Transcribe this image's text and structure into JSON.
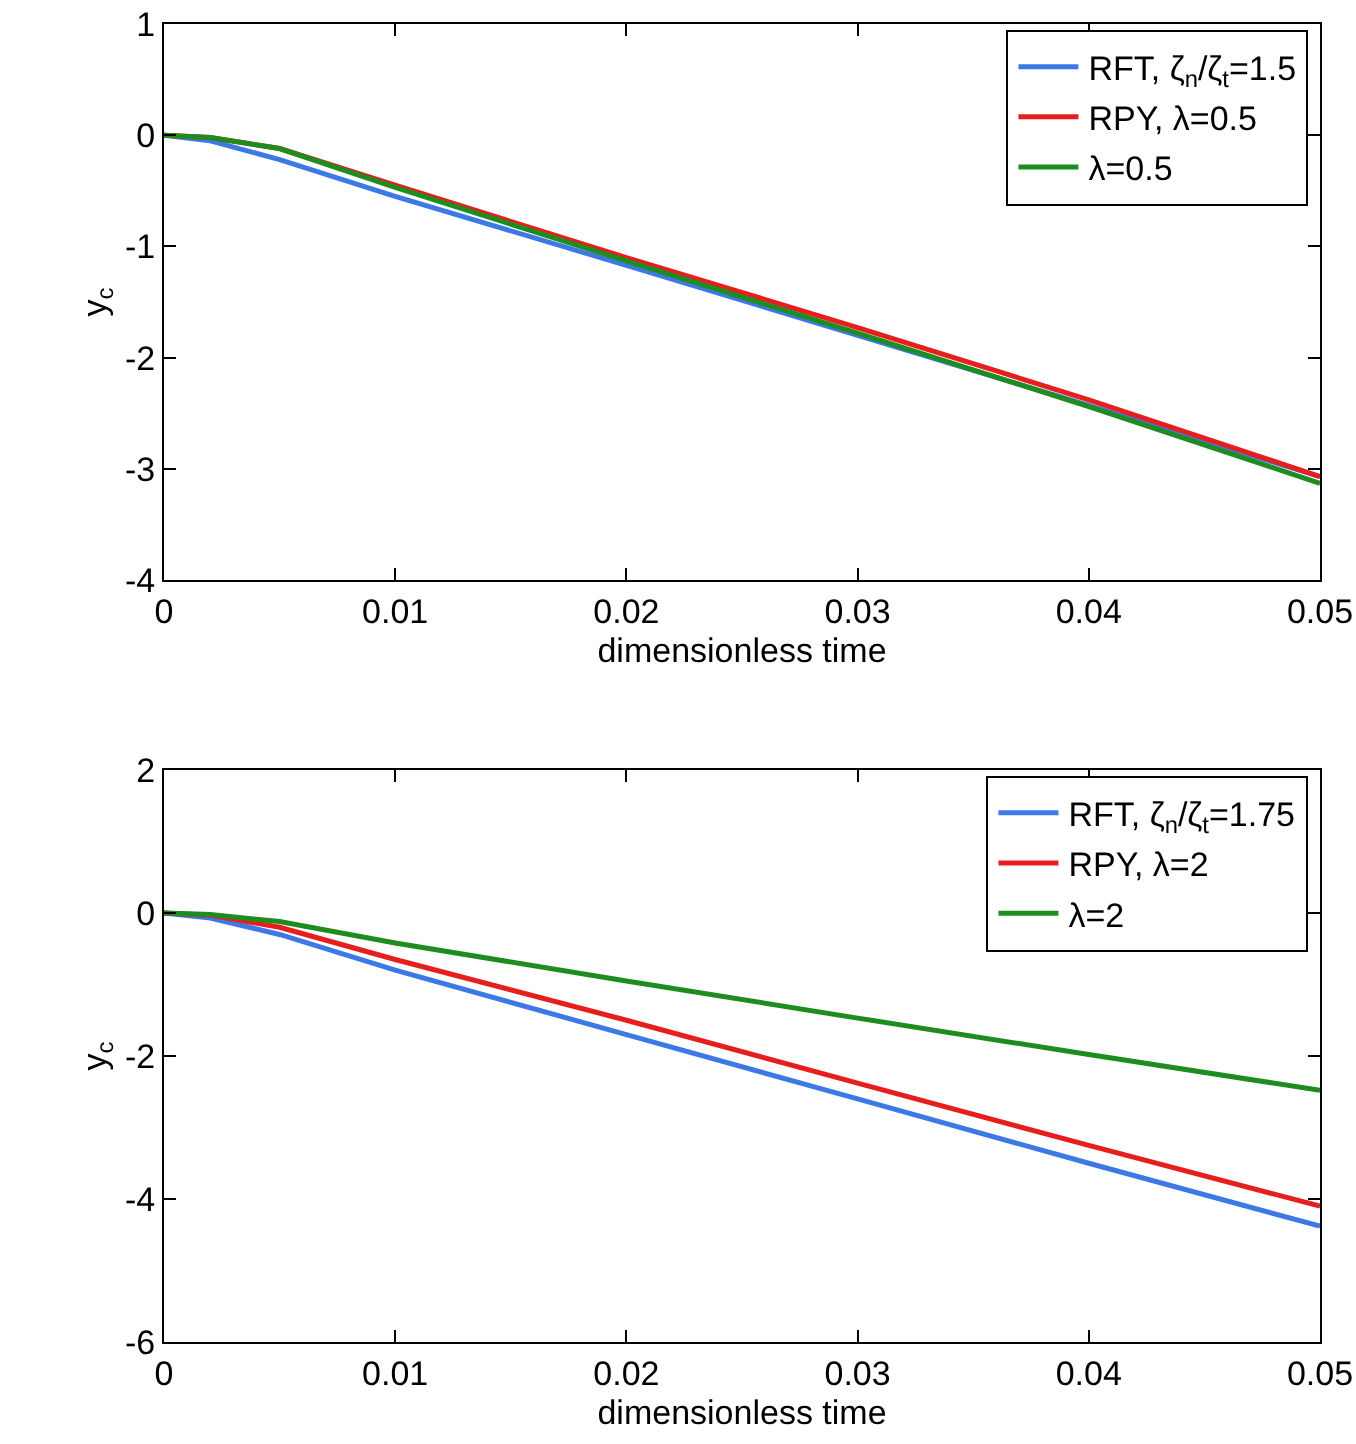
{
  "chart_data": [
    {
      "type": "line",
      "xlabel": "dimensionless time",
      "ylabel": "y$_{c}$",
      "xlim": [
        0,
        0.05
      ],
      "xticks": [
        0,
        0.01,
        0.02,
        0.03,
        0.04,
        0.05
      ],
      "ylim": [
        -4,
        1
      ],
      "yticks": [
        -4,
        -3,
        -2,
        -1,
        0,
        1
      ],
      "grid": false,
      "legend": "top right",
      "line_style": "solid",
      "marker": "none",
      "x": [
        0,
        0.002,
        0.005,
        0.01,
        0.02,
        0.03,
        0.04,
        0.05
      ],
      "series": [
        {
          "name": "RFT, ζ$_{n}$/ζ$_{t}$=1.5",
          "color": "#3c78e6",
          "values": [
            0,
            -0.05,
            -0.22,
            -0.55,
            -1.17,
            -1.8,
            -2.43,
            -3.07
          ]
        },
        {
          "name": "RPY, λ=0.5",
          "color": "#e61e1e",
          "values": [
            0,
            -0.02,
            -0.12,
            -0.45,
            -1.1,
            -1.73,
            -2.38,
            -3.07
          ]
        },
        {
          "name": "λ=0.5",
          "color": "#1e8c1e",
          "values": [
            0,
            -0.02,
            -0.12,
            -0.47,
            -1.13,
            -1.78,
            -2.44,
            -3.13
          ]
        }
      ]
    },
    {
      "type": "line",
      "xlabel": "dimensionless time",
      "ylabel": "y$_{c}$",
      "xlim": [
        0,
        0.05
      ],
      "xticks": [
        0,
        0.01,
        0.02,
        0.03,
        0.04,
        0.05
      ],
      "ylim": [
        -6,
        2
      ],
      "yticks": [
        -6,
        -4,
        -2,
        0,
        2
      ],
      "grid": false,
      "legend": "top right",
      "line_style": "solid",
      "marker": "none",
      "x": [
        0,
        0.002,
        0.005,
        0.01,
        0.02,
        0.03,
        0.04,
        0.05
      ],
      "series": [
        {
          "name": "RFT, ζ$_{n}$/ζ$_{t}$=1.75",
          "color": "#3c78e6",
          "values": [
            0,
            -0.07,
            -0.3,
            -0.8,
            -1.7,
            -2.6,
            -3.5,
            -4.38
          ]
        },
        {
          "name": "RPY, λ=2",
          "color": "#e61e1e",
          "values": [
            0,
            -0.03,
            -0.2,
            -0.65,
            -1.5,
            -2.38,
            -3.25,
            -4.1
          ]
        },
        {
          "name": "λ=2",
          "color": "#1e8c1e",
          "values": [
            0,
            -0.02,
            -0.12,
            -0.42,
            -0.95,
            -1.47,
            -1.98,
            -2.48
          ]
        }
      ]
    }
  ]
}
